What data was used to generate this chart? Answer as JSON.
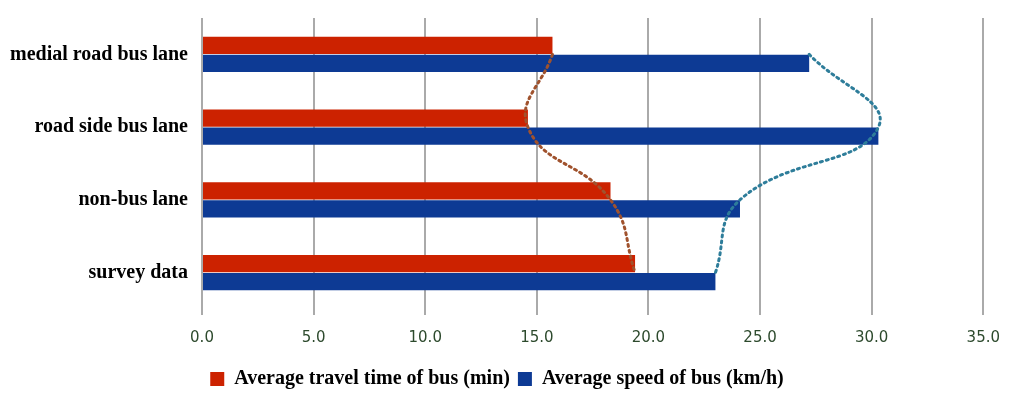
{
  "chart_data": {
    "type": "bar",
    "orientation": "horizontal",
    "categories": [
      "medial road bus lane",
      "road side bus lane",
      "non-bus lane",
      "survey data"
    ],
    "series": [
      {
        "name": "Average travel time of bus (min)",
        "color": "#cc2200",
        "values": [
          15.7,
          14.6,
          18.3,
          19.4
        ]
      },
      {
        "name": "Average speed of bus (km/h)",
        "color": "#0d3a94",
        "values": [
          27.2,
          30.3,
          24.1,
          23.0
        ]
      },
      {
        "type": "line",
        "color": "#a0522d",
        "line_style": "dotted",
        "marker": "none",
        "values": [
          15.7,
          14.6,
          18.3,
          19.4
        ]
      },
      {
        "type": "line",
        "color": "#2e7d9a",
        "line_style": "dotted",
        "marker": "none",
        "values": [
          27.2,
          30.3,
          24.1,
          23.0
        ]
      }
    ],
    "xlim": [
      0,
      35
    ],
    "xticks": [
      {
        "value": 0,
        "label": "0.0"
      },
      {
        "value": 5,
        "label": "5.0"
      },
      {
        "value": 10,
        "label": "10.0"
      },
      {
        "value": 15,
        "label": "15.0"
      },
      {
        "value": 20,
        "label": "20.0"
      },
      {
        "value": 25,
        "label": "25.0"
      },
      {
        "value": 30,
        "label": "30.0"
      },
      {
        "value": 35,
        "label": "35.0"
      }
    ],
    "grid": "x",
    "legend": "bottom"
  }
}
